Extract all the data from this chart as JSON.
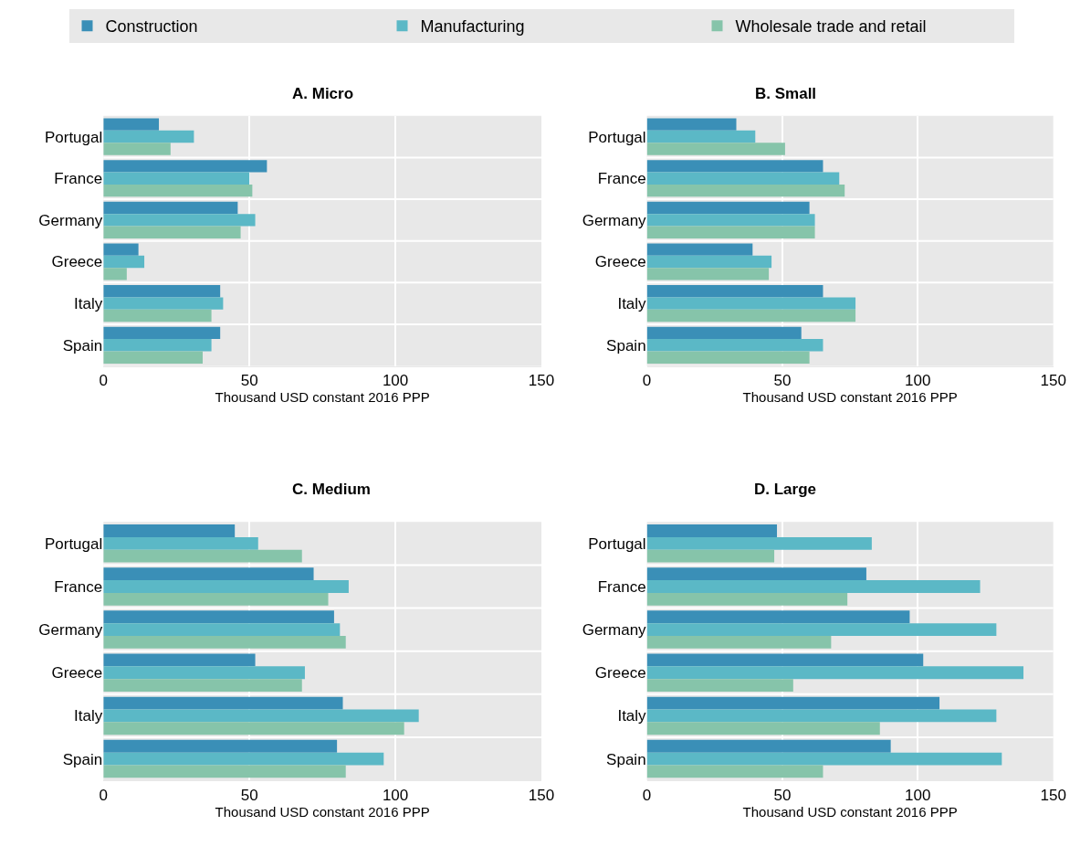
{
  "chart_data": [
    {
      "type": "bar",
      "orientation": "horizontal",
      "title": "A. Micro",
      "xlabel": "Thousand USD constant 2016 PPP",
      "categories": [
        "Portugal",
        "France",
        "Germany",
        "Greece",
        "Italy",
        "Spain"
      ],
      "xlim": [
        0,
        150
      ],
      "xticks": [
        0,
        50,
        100,
        150
      ],
      "grid": "x",
      "legend": "top",
      "series": [
        {
          "name": "Construction",
          "color": "#3a8fb7",
          "values": [
            19,
            56,
            46,
            12,
            40,
            40
          ]
        },
        {
          "name": "Manufacturing",
          "color": "#5bb8c6",
          "values": [
            31,
            50,
            52,
            14,
            41,
            37
          ]
        },
        {
          "name": "Wholesale trade and retail",
          "color": "#86c4aa",
          "values": [
            23,
            51,
            47,
            8,
            37,
            34
          ]
        }
      ]
    },
    {
      "type": "bar",
      "orientation": "horizontal",
      "title": "B. Small",
      "xlabel": "Thousand USD constant 2016 PPP",
      "categories": [
        "Portugal",
        "France",
        "Germany",
        "Greece",
        "Italy",
        "Spain"
      ],
      "xlim": [
        0,
        150
      ],
      "xticks": [
        0,
        50,
        100,
        150
      ],
      "grid": "x",
      "series": [
        {
          "color": "#3a8fb7",
          "values": [
            33,
            65,
            60,
            39,
            65,
            57
          ]
        },
        {
          "color": "#5bb8c6",
          "values": [
            40,
            71,
            62,
            46,
            77,
            65
          ]
        },
        {
          "color": "#86c4aa",
          "values": [
            51,
            73,
            62,
            45,
            77,
            60
          ]
        }
      ]
    },
    {
      "type": "bar",
      "orientation": "horizontal",
      "title": "C. Medium",
      "xlabel": "Thousand USD constant 2016 PPP",
      "categories": [
        "Portugal",
        "France",
        "Germany",
        "Greece",
        "Italy",
        "Spain"
      ],
      "xlim": [
        0,
        150
      ],
      "xticks": [
        0,
        50,
        100,
        150
      ],
      "grid": "x",
      "series": [
        {
          "color": "#3a8fb7",
          "values": [
            45,
            72,
            79,
            52,
            82,
            80
          ]
        },
        {
          "color": "#5bb8c6",
          "values": [
            53,
            84,
            81,
            69,
            108,
            96
          ]
        },
        {
          "color": "#86c4aa",
          "values": [
            68,
            77,
            83,
            68,
            103,
            83
          ]
        }
      ]
    },
    {
      "type": "bar",
      "orientation": "horizontal",
      "title": "D. Large",
      "xlabel": "Thousand USD constant 2016 PPP",
      "categories": [
        "Portugal",
        "France",
        "Germany",
        "Greece",
        "Italy",
        "Spain"
      ],
      "xlim": [
        0,
        150
      ],
      "xticks": [
        0,
        50,
        100,
        150
      ],
      "grid": "x",
      "series": [
        {
          "color": "#3a8fb7",
          "values": [
            48,
            81,
            97,
            102,
            108,
            90
          ]
        },
        {
          "color": "#5bb8c6",
          "values": [
            83,
            123,
            129,
            139,
            129,
            131
          ]
        },
        {
          "color": "#86c4aa",
          "values": [
            47,
            74,
            68,
            54,
            86,
            65
          ]
        }
      ]
    }
  ]
}
